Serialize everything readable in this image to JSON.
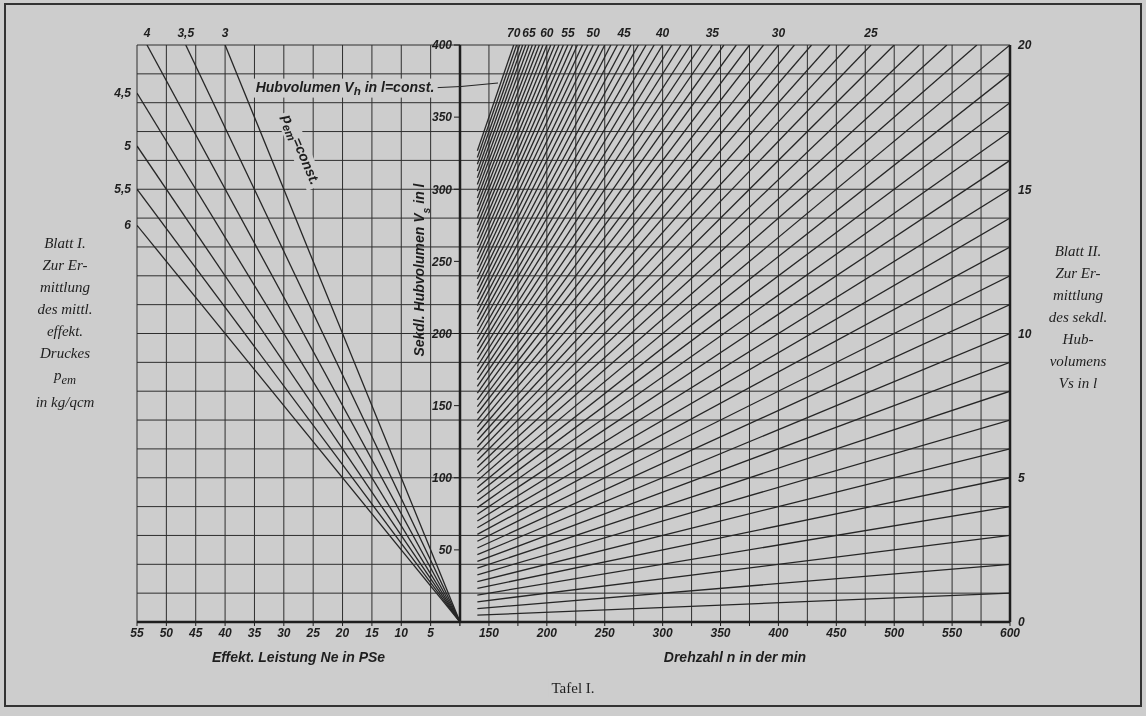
{
  "chart_data": [
    {
      "type": "line",
      "color": "#262626",
      "xlabel": "Effekt. Leistung Ne in PSe",
      "xlim": [
        55,
        0
      ],
      "xticks": [
        55,
        50,
        45,
        40,
        35,
        30,
        25,
        20,
        15,
        10,
        5,
        {
          "value": 0,
          "label": null
        }
      ],
      "ylim": [
        0,
        400
      ],
      "yticks": [
        0,
        20,
        40,
        60,
        80,
        100,
        120,
        140,
        160,
        180,
        200,
        220,
        240,
        260,
        280,
        300,
        320,
        340,
        360,
        380,
        400
      ],
      "tick_labels": "x",
      "grid": true,
      "marker": "none",
      "annotations": [
        "p$_{em}$=const.",
        "Blatt I.\nZur Er-\nmittlung\ndes mittl.\neffekt.\nDruckes\np$_{em}$\nin kg/qcm"
      ],
      "series": [
        {
          "name": "3",
          "x": [
            0,
            40
          ],
          "values": [
            0,
            400
          ]
        },
        {
          "name": "3,5",
          "x": [
            0,
            46.7
          ],
          "values": [
            0,
            400
          ]
        },
        {
          "name": "4",
          "x": [
            0,
            53.3
          ],
          "values": [
            0,
            400
          ]
        },
        {
          "name": "4,5",
          "x": [
            0,
            55
          ],
          "values": [
            0,
            366.7
          ]
        },
        {
          "name": "5",
          "x": [
            0,
            55
          ],
          "values": [
            0,
            330
          ]
        },
        {
          "name": "5,5",
          "x": [
            0,
            55
          ],
          "values": [
            0,
            300
          ]
        },
        {
          "name": "6",
          "x": [
            0,
            55
          ],
          "values": [
            0,
            275
          ]
        }
      ]
    },
    {
      "type": "line",
      "color": "#262626",
      "xlabel": "Drehzahl n in der min",
      "ylabel": "Sekdl. Hubvolumen V$_{s}$ in l",
      "xlim": [
        125,
        600
      ],
      "xticks": [
        {
          "value": 125,
          "label": null
        },
        150,
        {
          "value": 175,
          "label": null
        },
        200,
        {
          "value": 225,
          "label": null
        },
        250,
        {
          "value": 275,
          "label": null
        },
        300,
        {
          "value": 325,
          "label": null
        },
        350,
        {
          "value": 375,
          "label": null
        },
        400,
        {
          "value": 425,
          "label": null
        },
        450,
        {
          "value": 475,
          "label": null
        },
        500,
        {
          "value": 525,
          "label": null
        },
        550,
        {
          "value": 575,
          "label": null
        },
        600
      ],
      "ylim": [
        0,
        400
      ],
      "yticks": [
        50,
        100,
        150,
        200,
        250,
        300,
        350,
        400
      ],
      "y2lim": [
        0,
        20
      ],
      "y2ticks": [
        0,
        {
          "value": 1,
          "label": null
        },
        {
          "value": 2,
          "label": null
        },
        {
          "value": 3,
          "label": null
        },
        {
          "value": 4,
          "label": null
        },
        5,
        {
          "value": 6,
          "label": null
        },
        {
          "value": 7,
          "label": null
        },
        {
          "value": 8,
          "label": null
        },
        {
          "value": 9,
          "label": null
        },
        10,
        {
          "value": 11,
          "label": null
        },
        {
          "value": 12,
          "label": null
        },
        {
          "value": 13,
          "label": null
        },
        {
          "value": 14,
          "label": null
        },
        15,
        {
          "value": 16,
          "label": null
        },
        {
          "value": 17,
          "label": null
        },
        {
          "value": 18,
          "label": null
        },
        {
          "value": 19,
          "label": null
        },
        20
      ],
      "grid": true,
      "marker": "none",
      "annotations": [
        "Hubvolumen V$_{h}$ in l=const.",
        "Blatt II.\nZur Er-\nmittlung\ndes sekdl.\nHub-\nvolumens\nVs in l",
        "Tafel I."
      ],
      "series": [
        {
          "x": [
            140,
            600
          ],
          "values": [
            4.7,
            20
          ]
        },
        {
          "x": [
            140,
            600
          ],
          "values": [
            9.3,
            40
          ]
        },
        {
          "x": [
            140,
            600
          ],
          "values": [
            14,
            60
          ]
        },
        {
          "x": [
            140,
            600
          ],
          "values": [
            18.7,
            80
          ]
        },
        {
          "x": [
            140,
            600
          ],
          "values": [
            23.3,
            100
          ]
        },
        {
          "x": [
            140,
            600
          ],
          "values": [
            28,
            120
          ]
        },
        {
          "x": [
            140,
            600
          ],
          "values": [
            32.7,
            140
          ]
        },
        {
          "x": [
            140,
            600
          ],
          "values": [
            37.3,
            160
          ]
        },
        {
          "x": [
            140,
            600
          ],
          "values": [
            42,
            180
          ]
        },
        {
          "x": [
            140,
            600
          ],
          "values": [
            46.7,
            200
          ]
        },
        {
          "x": [
            140,
            600
          ],
          "values": [
            51.3,
            220
          ]
        },
        {
          "x": [
            140,
            600
          ],
          "values": [
            56,
            240
          ]
        },
        {
          "x": [
            140,
            600
          ],
          "values": [
            60.7,
            260
          ]
        },
        {
          "x": [
            140,
            600
          ],
          "values": [
            65.3,
            280
          ]
        },
        {
          "x": [
            140,
            600
          ],
          "values": [
            70,
            300
          ]
        },
        {
          "x": [
            140,
            600
          ],
          "values": [
            74.7,
            320
          ]
        },
        {
          "x": [
            140,
            600
          ],
          "values": [
            79.3,
            340
          ]
        },
        {
          "x": [
            140,
            600
          ],
          "values": [
            84,
            360
          ]
        },
        {
          "x": [
            140,
            600
          ],
          "values": [
            88.7,
            380
          ]
        },
        {
          "x": [
            140,
            600
          ],
          "values": [
            93.3,
            400
          ]
        },
        {
          "x": [
            140,
            571.4
          ],
          "values": [
            98,
            400
          ]
        },
        {
          "x": [
            140,
            545.5
          ],
          "values": [
            102.7,
            400
          ]
        },
        {
          "x": [
            140,
            521.7
          ],
          "values": [
            107.3,
            400
          ]
        },
        {
          "x": [
            140,
            500
          ],
          "values": [
            112,
            400
          ]
        },
        {
          "name": "25",
          "x": [
            140,
            480
          ],
          "values": [
            116.7,
            400
          ]
        },
        {
          "x": [
            140,
            461.5
          ],
          "values": [
            121.3,
            400
          ]
        },
        {
          "x": [
            140,
            444.4
          ],
          "values": [
            126,
            400
          ]
        },
        {
          "x": [
            140,
            428.6
          ],
          "values": [
            130.7,
            400
          ]
        },
        {
          "x": [
            140,
            413.8
          ],
          "values": [
            135.3,
            400
          ]
        },
        {
          "name": "30",
          "x": [
            140,
            400
          ],
          "values": [
            140,
            400
          ]
        },
        {
          "x": [
            140,
            387.1
          ],
          "values": [
            144.7,
            400
          ]
        },
        {
          "x": [
            140,
            375
          ],
          "values": [
            149.3,
            400
          ]
        },
        {
          "x": [
            140,
            363.6
          ],
          "values": [
            154,
            400
          ]
        },
        {
          "x": [
            140,
            352.9
          ],
          "values": [
            158.7,
            400
          ]
        },
        {
          "name": "35",
          "x": [
            140,
            342.9
          ],
          "values": [
            163.3,
            400
          ]
        },
        {
          "x": [
            140,
            333.3
          ],
          "values": [
            168,
            400
          ]
        },
        {
          "x": [
            140,
            324.3
          ],
          "values": [
            172.7,
            400
          ]
        },
        {
          "x": [
            140,
            315.8
          ],
          "values": [
            177.3,
            400
          ]
        },
        {
          "x": [
            140,
            307.7
          ],
          "values": [
            182,
            400
          ]
        },
        {
          "name": "40",
          "x": [
            140,
            300
          ],
          "values": [
            186.7,
            400
          ]
        },
        {
          "x": [
            140,
            292.7
          ],
          "values": [
            191.3,
            400
          ]
        },
        {
          "x": [
            140,
            285.7
          ],
          "values": [
            196,
            400
          ]
        },
        {
          "x": [
            140,
            279.1
          ],
          "values": [
            200.7,
            400
          ]
        },
        {
          "x": [
            140,
            272.7
          ],
          "values": [
            205.3,
            400
          ]
        },
        {
          "name": "45",
          "x": [
            140,
            266.7
          ],
          "values": [
            210,
            400
          ]
        },
        {
          "x": [
            140,
            260.9
          ],
          "values": [
            214.7,
            400
          ]
        },
        {
          "x": [
            140,
            255.3
          ],
          "values": [
            219.3,
            400
          ]
        },
        {
          "x": [
            140,
            250
          ],
          "values": [
            224,
            400
          ]
        },
        {
          "x": [
            140,
            244.9
          ],
          "values": [
            228.7,
            400
          ]
        },
        {
          "name": "50",
          "x": [
            140,
            240
          ],
          "values": [
            233.3,
            400
          ]
        },
        {
          "x": [
            140,
            235.3
          ],
          "values": [
            238,
            400
          ]
        },
        {
          "x": [
            140,
            230.8
          ],
          "values": [
            242.7,
            400
          ]
        },
        {
          "x": [
            140,
            226.4
          ],
          "values": [
            247.3,
            400
          ]
        },
        {
          "x": [
            140,
            222.2
          ],
          "values": [
            252,
            400
          ]
        },
        {
          "name": "55",
          "x": [
            140,
            218.2
          ],
          "values": [
            256.7,
            400
          ]
        },
        {
          "x": [
            140,
            214.3
          ],
          "values": [
            261.3,
            400
          ]
        },
        {
          "x": [
            140,
            210.5
          ],
          "values": [
            266,
            400
          ]
        },
        {
          "x": [
            140,
            206.9
          ],
          "values": [
            270.7,
            400
          ]
        },
        {
          "x": [
            140,
            203.4
          ],
          "values": [
            275.3,
            400
          ]
        },
        {
          "name": "60",
          "x": [
            140,
            200
          ],
          "values": [
            280,
            400
          ]
        },
        {
          "x": [
            140,
            196.7
          ],
          "values": [
            284.7,
            400
          ]
        },
        {
          "x": [
            140,
            193.5
          ],
          "values": [
            289.3,
            400
          ]
        },
        {
          "x": [
            140,
            190.5
          ],
          "values": [
            294,
            400
          ]
        },
        {
          "x": [
            140,
            187.5
          ],
          "values": [
            298.7,
            400
          ]
        },
        {
          "name": "65",
          "x": [
            140,
            184.6
          ],
          "values": [
            303.3,
            400
          ]
        },
        {
          "x": [
            140,
            181.8
          ],
          "values": [
            308,
            400
          ]
        },
        {
          "x": [
            140,
            179.1
          ],
          "values": [
            312.7,
            400
          ]
        },
        {
          "x": [
            140,
            176.5
          ],
          "values": [
            317.3,
            400
          ]
        },
        {
          "x": [
            140,
            173.9
          ],
          "values": [
            322,
            400
          ]
        },
        {
          "name": "70",
          "x": [
            140,
            171.4
          ],
          "values": [
            326.7,
            400
          ]
        }
      ]
    }
  ]
}
